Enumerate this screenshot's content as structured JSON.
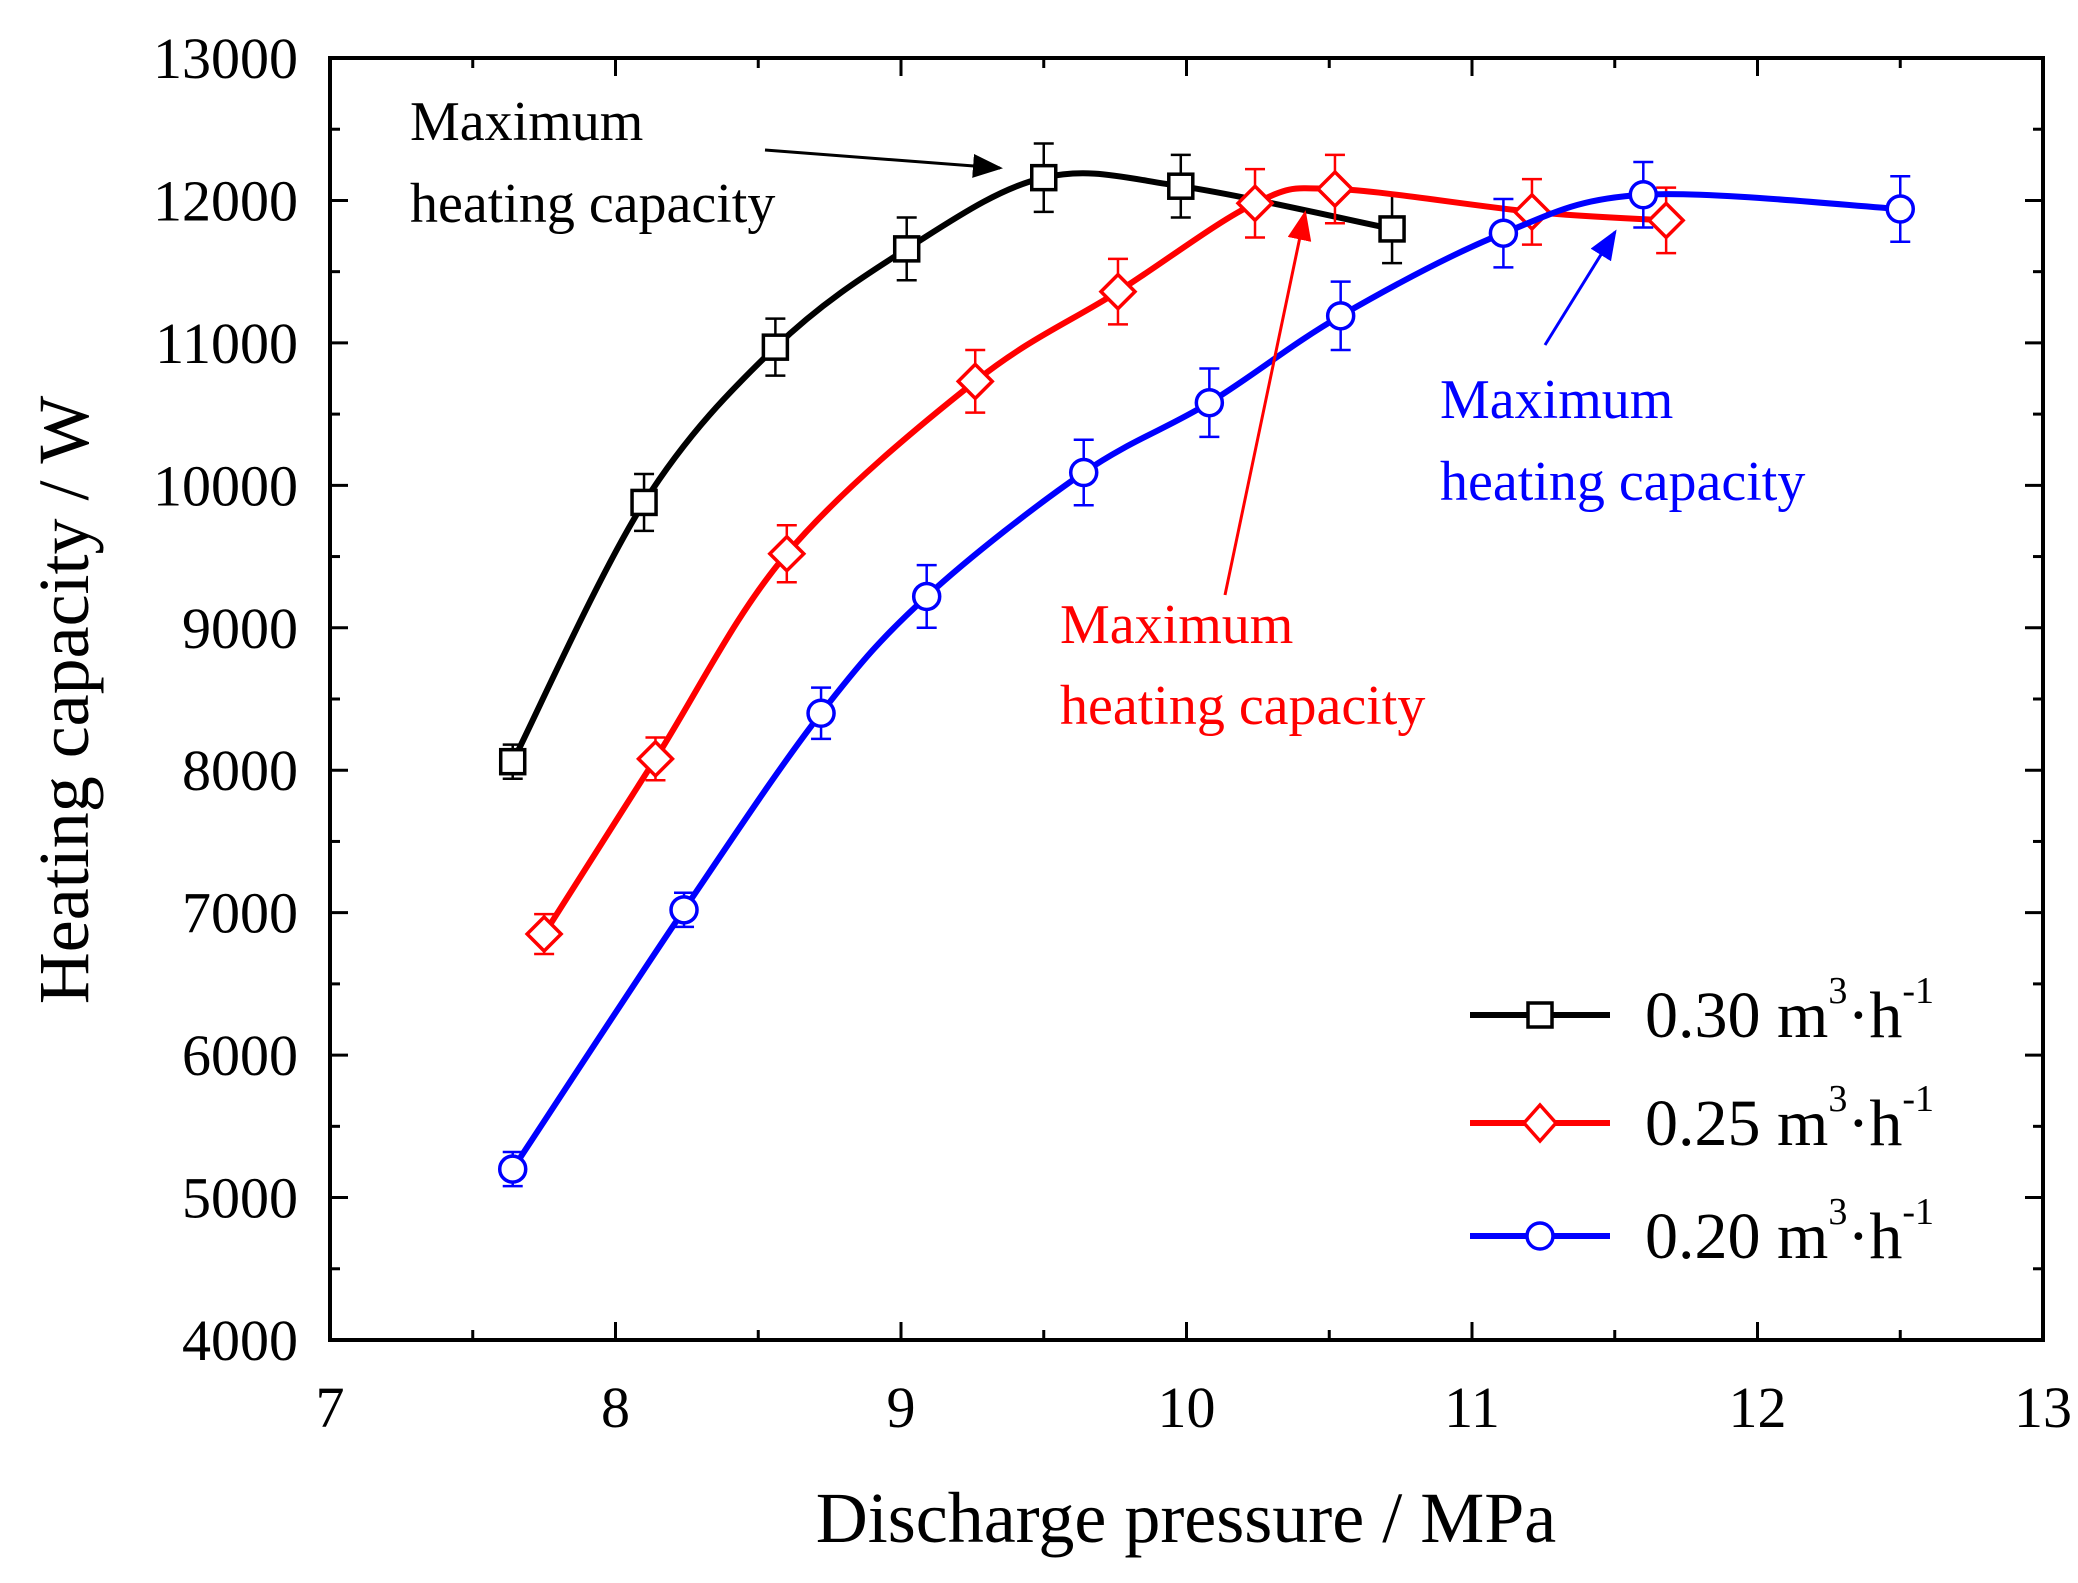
{
  "chart_data": {
    "type": "line",
    "title": "",
    "xlabel": "Discharge pressure  / MPa",
    "ylabel": "Heating capacity  / W",
    "xlim": [
      7,
      13
    ],
    "ylim": [
      4000,
      13000
    ],
    "x_ticks": [
      "7",
      "8",
      "9",
      "10",
      "11",
      "12",
      "13"
    ],
    "y_ticks": [
      "4000",
      "5000",
      "6000",
      "7000",
      "8000",
      "9000",
      "10000",
      "11000",
      "12000",
      "13000"
    ],
    "legend_position": "bottom-right",
    "series": [
      {
        "name": "0.30 m3·h-1",
        "label_main": "0.30 m",
        "label_sup1": "3",
        "label_mid": "·h",
        "label_sup2": "-1",
        "color": "#000000",
        "marker": "square",
        "x": [
          7.64,
          8.1,
          8.56,
          9.02,
          9.5,
          9.98,
          10.72
        ],
        "y": [
          8060,
          9880,
          10970,
          11660,
          12160,
          12100,
          11800
        ],
        "error": [
          120,
          200,
          200,
          220,
          240,
          220,
          240
        ]
      },
      {
        "name": "0.25 m3·h-1",
        "label_main": "0.25 m",
        "label_sup1": "3",
        "label_mid": "·h",
        "label_sup2": "-1",
        "color": "#ff0000",
        "marker": "diamond",
        "x": [
          7.75,
          8.14,
          8.6,
          9.26,
          9.76,
          10.24,
          10.52,
          11.21,
          11.68
        ],
        "y": [
          6850,
          8080,
          9520,
          10730,
          11360,
          11980,
          12080,
          11920,
          11860
        ],
        "error": [
          140,
          150,
          200,
          220,
          230,
          240,
          240,
          230,
          230
        ]
      },
      {
        "name": "0.20 m3·h-1",
        "label_main": "0.20 m",
        "label_sup1": "3",
        "label_mid": "·h",
        "label_sup2": "-1",
        "color": "#0000ff",
        "marker": "circle",
        "x": [
          7.64,
          8.24,
          8.72,
          9.09,
          9.64,
          10.08,
          10.54,
          11.11,
          11.6,
          12.5
        ],
        "y": [
          5200,
          7020,
          8400,
          9220,
          10090,
          10580,
          11190,
          11770,
          12040,
          11940
        ],
        "error": [
          120,
          120,
          180,
          220,
          230,
          240,
          240,
          240,
          230,
          230
        ]
      }
    ],
    "annotations": [
      {
        "line1": "Maximum",
        "line2": "heating capacity",
        "color": "#000000",
        "target_x": 9.4,
        "target_y": 12230
      },
      {
        "line1": "Maximum",
        "line2": "heating capacity",
        "color": "#ff0000",
        "target_x": 10.48,
        "target_y": 11850
      },
      {
        "line1": "Maximum",
        "line2": "heating capacity",
        "color": "#0000ff",
        "target_x": 11.55,
        "target_y": 11850
      }
    ]
  }
}
